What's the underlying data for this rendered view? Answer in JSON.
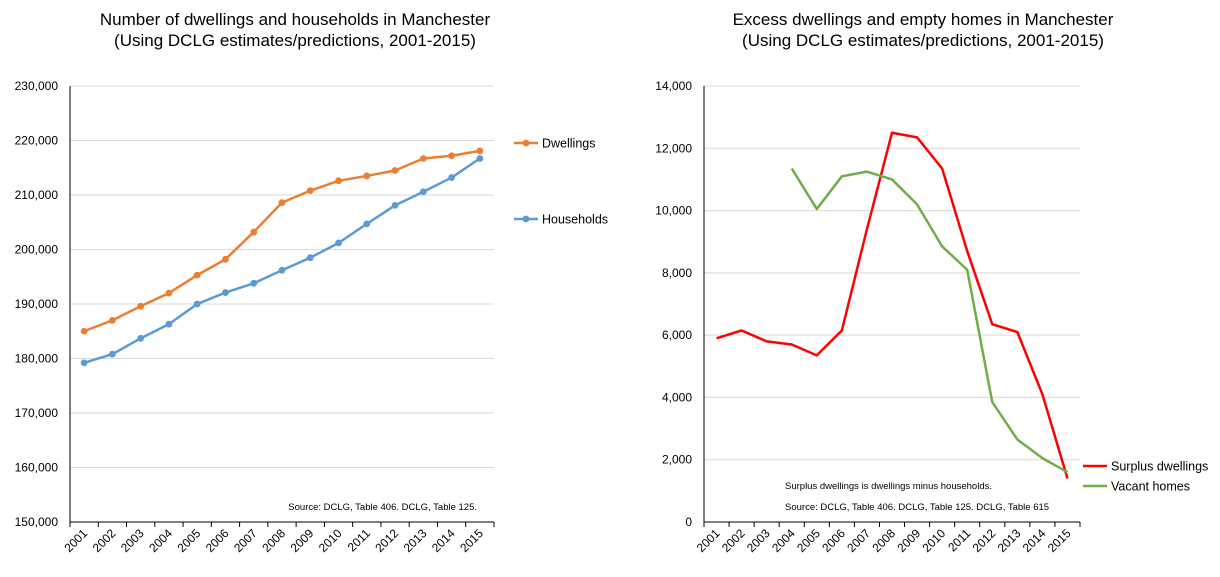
{
  "chart_data": [
    {
      "type": "line",
      "title": "Number of dwellings and households in Manchester",
      "subtitle": "(Using DCLG estimates/predictions, 2001-2015)",
      "xlabel": "",
      "ylabel": "",
      "categories": [
        "2001",
        "2002",
        "2003",
        "2004",
        "2005",
        "2006",
        "2007",
        "2008",
        "2009",
        "2010",
        "2011",
        "2012",
        "2013",
        "2014",
        "2015"
      ],
      "ylim": [
        150000,
        230000
      ],
      "yticks": [
        "150,000",
        "160,000",
        "170,000",
        "180,000",
        "190,000",
        "200,000",
        "210,000",
        "220,000",
        "230,000"
      ],
      "grid": true,
      "legend_position": "right",
      "note": "Source: DCLG, Table 406. DCLG, Table 125.",
      "series": [
        {
          "name": "Dwellings",
          "color": "#ED7D31",
          "markers": true,
          "values": [
            185000,
            187000,
            189600,
            192000,
            195300,
            198200,
            203200,
            208600,
            210800,
            212600,
            213500,
            214500,
            216700,
            217200,
            218100
          ]
        },
        {
          "name": "Households",
          "color": "#5B9BD5",
          "markers": true,
          "values": [
            179200,
            180800,
            183700,
            186300,
            190000,
            192100,
            193800,
            196200,
            198500,
            201200,
            204700,
            208100,
            210600,
            213200,
            216700
          ]
        }
      ]
    },
    {
      "type": "line",
      "title": "Excess dwellings and empty homes in Manchester",
      "subtitle": "(Using DCLG estimates/predictions, 2001-2015)",
      "xlabel": "",
      "ylabel": "",
      "categories": [
        "2001",
        "2002",
        "2003",
        "2004",
        "2005",
        "2006",
        "2007",
        "2008",
        "2009",
        "2010",
        "2011",
        "2012",
        "2013",
        "2014",
        "2015"
      ],
      "ylim": [
        0,
        14000
      ],
      "yticks": [
        "0",
        "2,000",
        "4,000",
        "6,000",
        "8,000",
        "10,000",
        "12,000",
        "14,000"
      ],
      "grid": true,
      "legend_position": "bottom-right",
      "note_lines": [
        "Surplus dwellings is dwellings minus households.",
        "Source: DCLG, Table 406. DCLG, Table 125. DCLG, Table 615"
      ],
      "series": [
        {
          "name": "Surplus dwellings",
          "color": "#FF0000",
          "markers": false,
          "values": [
            5900,
            6150,
            5800,
            5700,
            5350,
            6150,
            9400,
            12500,
            12350,
            11350,
            8700,
            6350,
            6100,
            4100,
            1400
          ]
        },
        {
          "name": "Vacant homes",
          "color": "#70AD47",
          "markers": false,
          "values": [
            null,
            null,
            null,
            11350,
            10050,
            11100,
            11250,
            11000,
            10200,
            8850,
            8100,
            3850,
            2650,
            2050,
            1600
          ]
        }
      ]
    }
  ]
}
